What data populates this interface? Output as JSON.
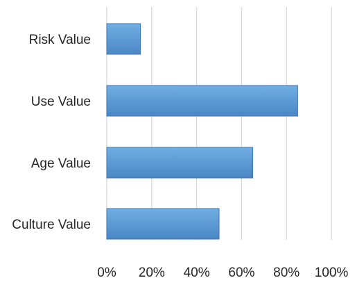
{
  "chart_data": {
    "type": "bar",
    "orientation": "horizontal",
    "categories": [
      "Risk Value",
      "Use Value",
      "Age Value",
      "Culture Value"
    ],
    "values": [
      15,
      85,
      65,
      50
    ],
    "value_unit": "%",
    "x_ticks": [
      "0%",
      "20%",
      "40%",
      "60%",
      "80%",
      "100%"
    ],
    "xlim": [
      0,
      100
    ],
    "title": "",
    "xlabel": "",
    "ylabel": "",
    "grid": "vertical",
    "legend": "none",
    "bar_color": "#5b9bd5"
  }
}
